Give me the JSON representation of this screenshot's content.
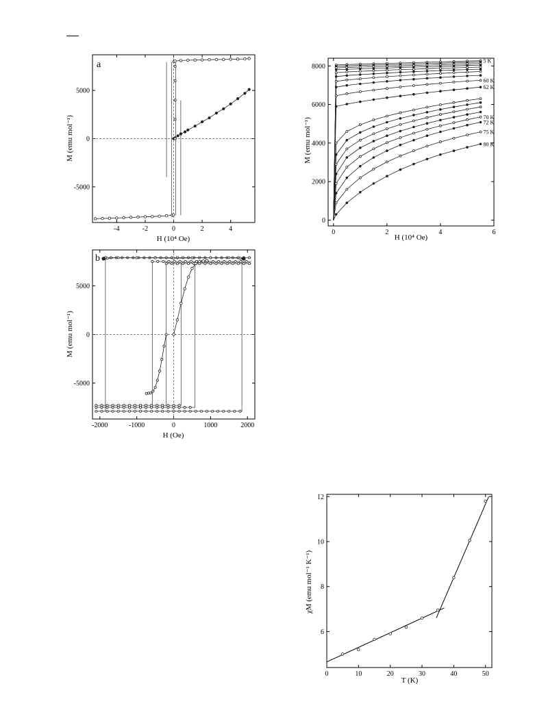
{
  "page": {
    "dash": "—"
  },
  "chart_data": [
    {
      "id": "panel-a",
      "type": "line",
      "panel_label": "a",
      "title": "",
      "xlabel": "H (10⁴ Oe)",
      "ylabel": "M (emu mol⁻¹)",
      "xlim": [
        -5.7,
        5.7
      ],
      "ylim": [
        -8700,
        8700
      ],
      "xticks": [
        -4,
        -2,
        0,
        2,
        4
      ],
      "xtick_labels": [
        "-4",
        "-2",
        "0",
        "2",
        "4"
      ],
      "yticks": [
        -5000,
        0,
        5000
      ],
      "ytick_labels": [
        "-5000",
        "0",
        "5000"
      ],
      "zero_lines": true,
      "series": [
        {
          "style": "open",
          "x": [
            -5.5,
            -5.0,
            -4.5,
            -4.0,
            -3.5,
            -3.0,
            -2.5,
            -2.0,
            -1.5,
            -1.0,
            -0.5,
            -0.1,
            -0.02
          ],
          "y": [
            -8300,
            -8280,
            -8260,
            -8230,
            -8200,
            -8170,
            -8140,
            -8110,
            -8080,
            -8040,
            -8000,
            -7950,
            -7900
          ]
        },
        {
          "style": "open",
          "x": [
            0.02,
            0.1,
            0.5,
            1.0,
            1.5,
            2.0,
            2.5,
            3.0,
            3.5,
            4.0,
            4.5,
            5.0,
            5.3
          ],
          "y": [
            8000,
            8050,
            8100,
            8130,
            8150,
            8170,
            8190,
            8200,
            8220,
            8230,
            8250,
            8270,
            8300
          ]
        },
        {
          "style": "filled",
          "x": [
            0,
            0.1,
            0.3,
            0.5,
            0.8,
            1.0,
            1.5,
            2.0,
            2.5,
            3.0,
            3.5,
            4.0,
            4.5,
            5.0,
            5.3
          ],
          "y": [
            0,
            80,
            300,
            500,
            700,
            900,
            1300,
            1750,
            2150,
            2650,
            3100,
            3600,
            4150,
            4700,
            5100
          ]
        }
      ]
    },
    {
      "id": "panel-isotherms",
      "type": "line",
      "title": "",
      "xlabel": "H (10⁴ Oe)",
      "ylabel": "M (emu mol⁻¹)",
      "xlim": [
        -0.2,
        6
      ],
      "ylim": [
        -300,
        8400
      ],
      "xticks": [
        0,
        2,
        4,
        6
      ],
      "xtick_labels": [
        "0",
        "2",
        "4",
        "6"
      ],
      "yticks": [
        0,
        2000,
        4000,
        6000,
        8000
      ],
      "ytick_labels": [
        "0",
        "2000",
        "4000",
        "6000",
        "8000"
      ],
      "x": [
        0,
        0.1,
        0.5,
        1.0,
        1.5,
        2.0,
        2.5,
        3.0,
        3.5,
        4.0,
        4.5,
        5.0,
        5.5
      ],
      "series": [
        {
          "name": "5 K",
          "values": [
            0,
            8050,
            8070,
            8090,
            8110,
            8130,
            8150,
            8170,
            8190,
            8210,
            8230,
            8250,
            8270
          ]
        },
        {
          "name": "",
          "values": [
            0,
            7980,
            8000,
            8020,
            8040,
            8060,
            8080,
            8100,
            8120,
            8140,
            8160,
            8180,
            8200
          ]
        },
        {
          "name": "",
          "values": [
            0,
            7900,
            7920,
            7940,
            7960,
            7980,
            8000,
            8020,
            8040,
            8060,
            8080,
            8100,
            8120
          ]
        },
        {
          "name": "",
          "values": [
            0,
            7800,
            7820,
            7850,
            7870,
            7890,
            7920,
            7940,
            7960,
            7980,
            8000,
            8020,
            8040
          ]
        },
        {
          "name": "",
          "values": [
            0,
            7650,
            7690,
            7720,
            7750,
            7780,
            7810,
            7830,
            7860,
            7880,
            7900,
            7920,
            7940
          ]
        },
        {
          "name": "",
          "values": [
            0,
            7450,
            7500,
            7550,
            7590,
            7630,
            7670,
            7700,
            7730,
            7760,
            7790,
            7810,
            7830
          ]
        },
        {
          "name": "",
          "values": [
            0,
            7200,
            7270,
            7330,
            7390,
            7440,
            7490,
            7530,
            7570,
            7610,
            7650,
            7680,
            7710
          ]
        },
        {
          "name": "",
          "values": [
            0,
            6900,
            6990,
            7070,
            7140,
            7200,
            7260,
            7310,
            7360,
            7400,
            7440,
            7480,
            7510
          ]
        },
        {
          "name": "60 K",
          "values": [
            0,
            6450,
            6560,
            6660,
            6750,
            6830,
            6910,
            6980,
            7040,
            7100,
            7160,
            7210,
            7250
          ]
        },
        {
          "name": "62 K",
          "values": [
            0,
            5900,
            6020,
            6140,
            6250,
            6350,
            6440,
            6530,
            6610,
            6690,
            6760,
            6830,
            6900
          ]
        },
        {
          "name": "",
          "values": [
            0,
            4000,
            4600,
            4950,
            5200,
            5400,
            5570,
            5720,
            5860,
            5990,
            6100,
            6210,
            6300
          ]
        },
        {
          "name": "",
          "values": [
            0,
            3400,
            4150,
            4550,
            4850,
            5080,
            5280,
            5450,
            5600,
            5740,
            5870,
            5990,
            6100
          ]
        },
        {
          "name": "",
          "values": [
            0,
            2900,
            3700,
            4150,
            4480,
            4740,
            4960,
            5150,
            5320,
            5480,
            5620,
            5750,
            5870
          ]
        },
        {
          "name": "",
          "values": [
            0,
            2400,
            3250,
            3750,
            4100,
            4380,
            4620,
            4830,
            5020,
            5190,
            5340,
            5480,
            5610
          ]
        },
        {
          "name": "70 K",
          "values": [
            0,
            1900,
            2750,
            3300,
            3700,
            4020,
            4280,
            4510,
            4710,
            4890,
            5060,
            5210,
            5350
          ]
        },
        {
          "name": "72 K",
          "values": [
            0,
            1400,
            2200,
            2800,
            3250,
            3600,
            3900,
            4150,
            4380,
            4580,
            4760,
            4930,
            5080
          ]
        },
        {
          "name": "75 K",
          "values": [
            0,
            900,
            1600,
            2200,
            2650,
            3020,
            3330,
            3600,
            3840,
            4060,
            4250,
            4420,
            4580
          ]
        },
        {
          "name": "80 K",
          "values": [
            0,
            300,
            900,
            1450,
            1900,
            2280,
            2620,
            2910,
            3170,
            3400,
            3600,
            3780,
            3950
          ]
        }
      ]
    },
    {
      "id": "panel-b",
      "type": "line",
      "panel_label": "b",
      "title": "",
      "xlabel": "H (Oe)",
      "ylabel": "M (emu mol⁻¹)",
      "xlim": [
        -2200,
        2200
      ],
      "ylim": [
        -8700,
        8700
      ],
      "xticks": [
        -2000,
        -1000,
        0,
        1000,
        2000
      ],
      "xtick_labels": [
        "-2000",
        "-1000",
        "0",
        "1000",
        "2000"
      ],
      "yticks": [
        -5000,
        0,
        5000
      ],
      "ytick_labels": [
        "-5000",
        "0",
        "5000"
      ],
      "zero_lines": true,
      "loops": [
        {
          "coercive_field": 1850,
          "saturation": 7900
        },
        {
          "coercive_field": 580,
          "saturation": 7500
        },
        {
          "coercive_field": 200,
          "saturation": 7300
        }
      ],
      "virgin_curve": {
        "x": [
          0,
          100,
          200,
          300,
          400,
          500,
          600,
          700,
          800,
          900
        ],
        "y": [
          0,
          1500,
          3200,
          4700,
          5900,
          6800,
          7300,
          7500,
          7550,
          7600
        ]
      },
      "filled_points": {
        "x": [
          -1900,
          -1800,
          -1500,
          -1000,
          -500,
          0,
          500,
          1000,
          1500,
          1800,
          1900
        ],
        "y": [
          7800,
          7850,
          7900,
          7900,
          7880,
          7850,
          7880,
          7900,
          7900,
          7850,
          7800
        ]
      }
    },
    {
      "id": "panel-chi",
      "type": "line",
      "title": "",
      "xlabel": "T (K)",
      "ylabel": "χM (emu mol⁻¹ K⁻¹)",
      "xlim": [
        0,
        52
      ],
      "ylim": [
        4.4,
        12.1
      ],
      "xticks": [
        0,
        10,
        20,
        30,
        40,
        50
      ],
      "xtick_labels": [
        "0",
        "10",
        "20",
        "30",
        "40",
        "50"
      ],
      "yticks": [
        6,
        8,
        10,
        12
      ],
      "ytick_labels": [
        "6",
        "8",
        "10",
        "12"
      ],
      "points": {
        "x": [
          5,
          10,
          15,
          20,
          25,
          30,
          35,
          40,
          45,
          50
        ],
        "y": [
          5.0,
          5.2,
          5.65,
          5.9,
          6.2,
          6.6,
          6.95,
          8.4,
          10.05,
          11.8
        ]
      },
      "fits": [
        {
          "x": [
            0,
            37
          ],
          "y": [
            4.65,
            7.05
          ]
        },
        {
          "x": [
            34.5,
            51
          ],
          "y": [
            6.6,
            12.0
          ]
        }
      ]
    }
  ]
}
